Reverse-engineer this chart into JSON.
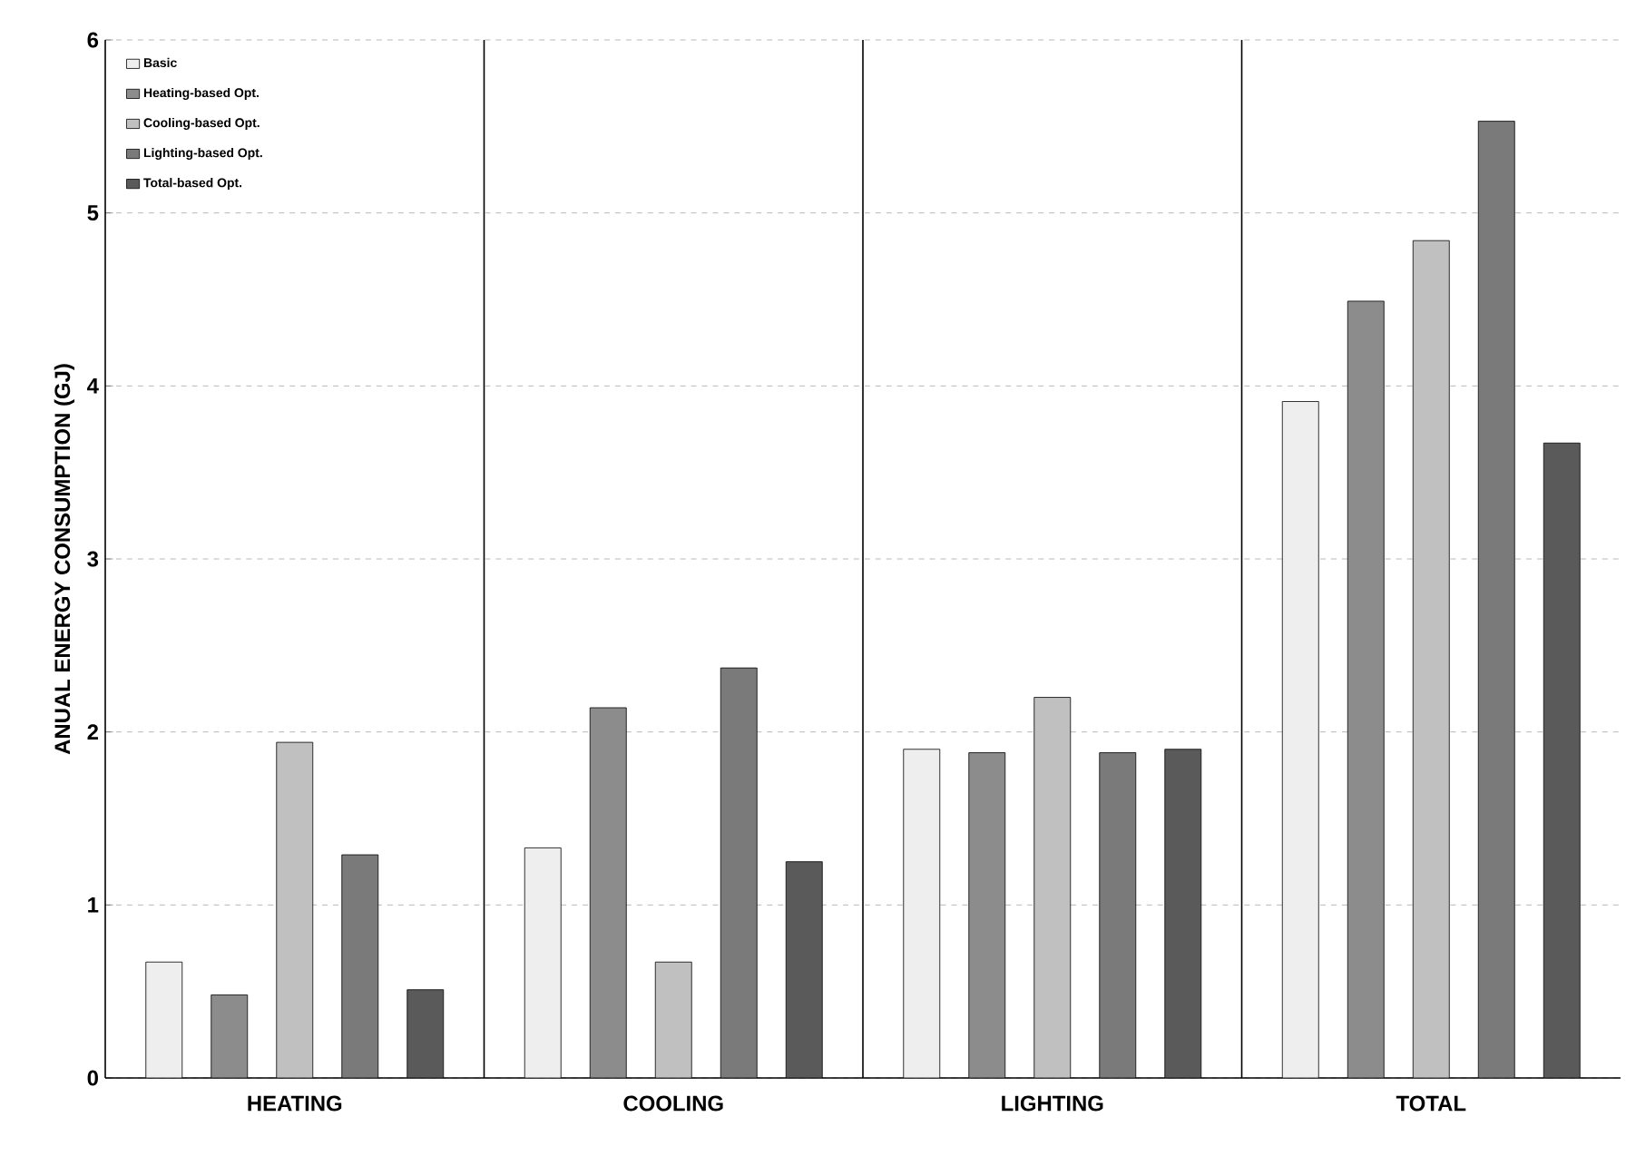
{
  "chart_data": {
    "type": "bar",
    "ylabel": "ANUAL ENERGY CONSUMPTION (GJ)",
    "categories": [
      "HEATING",
      "COOLING",
      "LIGHTING",
      "TOTAL"
    ],
    "series": [
      {
        "name": "Basic",
        "color": "#eeeeee",
        "values": [
          0.67,
          1.33,
          1.9,
          3.91
        ]
      },
      {
        "name": "Heating-based Opt.",
        "color": "#8c8c8c",
        "values": [
          0.48,
          2.14,
          1.88,
          4.49
        ]
      },
      {
        "name": "Cooling-based Opt.",
        "color": "#c0c0c0",
        "values": [
          1.94,
          0.67,
          2.2,
          4.84
        ]
      },
      {
        "name": "Lighting-based Opt.",
        "color": "#7a7a7a",
        "values": [
          1.29,
          2.37,
          1.88,
          5.53
        ]
      },
      {
        "name": "Total-based Opt.",
        "color": "#5a5a5a",
        "values": [
          0.51,
          1.25,
          1.9,
          3.67
        ]
      }
    ],
    "ylim": [
      0,
      6
    ],
    "yticks": [
      0,
      1,
      2,
      3,
      4,
      5,
      6
    ],
    "grid": "y",
    "legend": "top left"
  }
}
